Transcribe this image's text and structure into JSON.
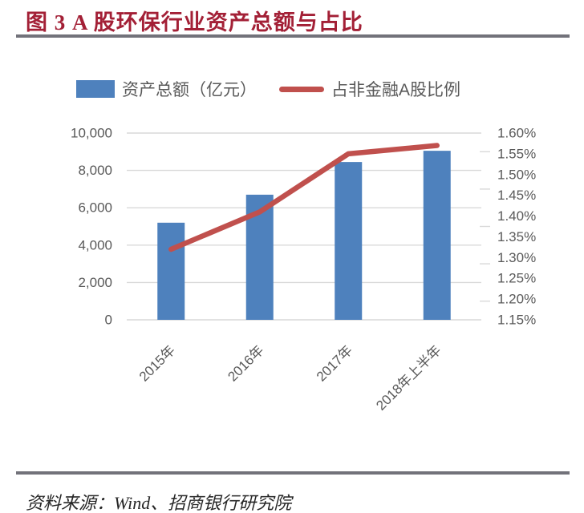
{
  "title": "图 3 A 股环保行业资产总额与占比",
  "source": "资料来源：Wind、招商银行研究院",
  "colors": {
    "title": "#A32036",
    "divider": "#72727A",
    "axis_text": "#595959",
    "gridline": "#D9D9D9",
    "bar": "#4E81BD",
    "line": "#C0504D"
  },
  "chart_data": {
    "type": "bar+line",
    "title": "图 3 A 股环保行业资产总额与占比",
    "categories": [
      "2015年",
      "2016年",
      "2017年",
      "2018年上半年"
    ],
    "series": [
      {
        "name": "资产总额（亿元）",
        "type": "bar",
        "axis": "left",
        "color": "#4E81BD",
        "values": [
          5200,
          6700,
          8450,
          9050
        ]
      },
      {
        "name": "占非金融A股比例",
        "type": "line",
        "axis": "right",
        "color": "#C0504D",
        "values": [
          1.32,
          1.41,
          1.55,
          1.57
        ]
      }
    ],
    "left_axis": {
      "min": 0,
      "max": 10000,
      "tick_labels": [
        "0",
        "2,000",
        "4,000",
        "6,000",
        "8,000",
        "10,000"
      ]
    },
    "right_axis": {
      "min": 1.15,
      "max": 1.6,
      "tick_labels": [
        "1.15%",
        "1.20%",
        "1.25%",
        "1.30%",
        "1.35%",
        "1.40%",
        "1.45%",
        "1.50%",
        "1.55%",
        "1.60%"
      ]
    },
    "grid": true,
    "legend_position": "top"
  }
}
